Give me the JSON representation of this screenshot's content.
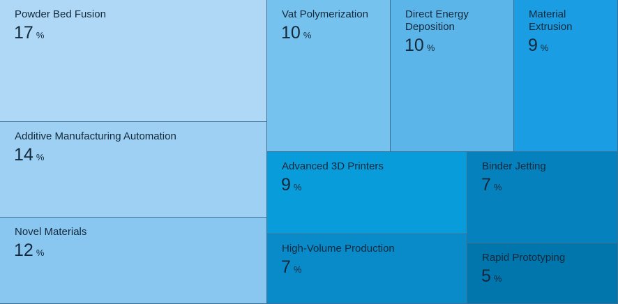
{
  "chart_data": {
    "type": "treemap",
    "unit": "%",
    "items": [
      {
        "name": "Powder Bed Fusion",
        "value": 17,
        "color": "#aed8f6"
      },
      {
        "name": "Additive Manufacturing Automation",
        "value": 14,
        "color": "#9dd0f3"
      },
      {
        "name": "Novel Materials",
        "value": 12,
        "color": "#8ac7f0"
      },
      {
        "name": "Vat Polymerization",
        "value": 10,
        "color": "#76c2ee"
      },
      {
        "name": "Direct Energy Deposition",
        "value": 10,
        "color": "#5cb5e9"
      },
      {
        "name": "Material Extrusion",
        "value": 9,
        "color": "#1a9de2"
      },
      {
        "name": "Advanced 3D Printers",
        "value": 9,
        "color": "#089cda"
      },
      {
        "name": "Binder Jetting",
        "value": 7,
        "color": "#0582be"
      },
      {
        "name": "High-Volume Production",
        "value": 7,
        "color": "#0a8bc9"
      },
      {
        "name": "Rapid Prototyping",
        "value": 5,
        "color": "#0076ad"
      }
    ]
  }
}
